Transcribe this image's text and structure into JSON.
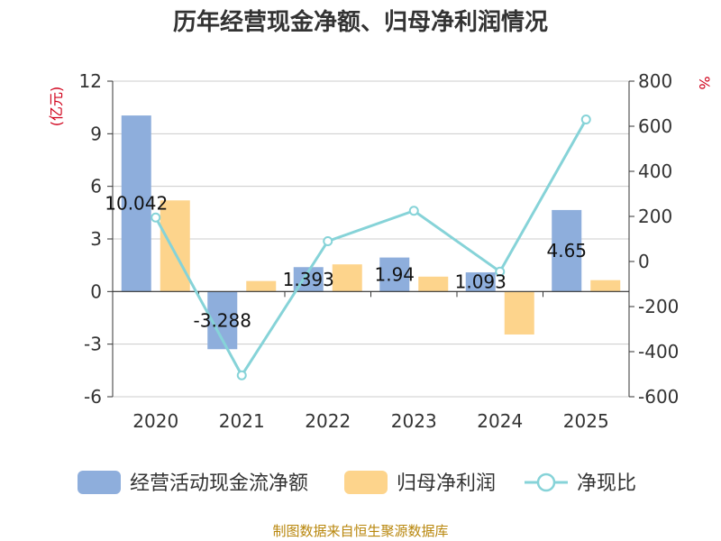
{
  "chart_data": {
    "type": "bar",
    "title": "历年经营现金净额、归母净利润情况",
    "categories": [
      "2020",
      "2021",
      "2022",
      "2023",
      "2024",
      "2025"
    ],
    "series": [
      {
        "name": "经营活动现金流净额",
        "type": "bar",
        "axis": "left",
        "color": "#8eaedc",
        "values": [
          10.042,
          -3.288,
          1.393,
          1.94,
          1.093,
          4.65
        ],
        "labels": [
          "10.042",
          "-3.288",
          "1.393",
          "1.94",
          "1.093",
          "4.65"
        ]
      },
      {
        "name": "归母净利润",
        "type": "bar",
        "axis": "left",
        "color": "#fdd48c",
        "values": [
          5.2,
          0.6,
          1.55,
          0.85,
          -2.45,
          0.65
        ]
      },
      {
        "name": "净现比",
        "type": "line",
        "axis": "right",
        "color": "#86d3d8",
        "values": [
          195,
          -505,
          90,
          225,
          -45,
          630
        ]
      }
    ],
    "left_axis": {
      "unit": "(亿元)",
      "min": -6,
      "max": 12,
      "ticks": [
        "12",
        "9",
        "6",
        "3",
        "0",
        "-3",
        "-6"
      ]
    },
    "right_axis": {
      "unit": "%",
      "min": -600,
      "max": 800,
      "ticks": [
        "800",
        "600",
        "400",
        "200",
        "0",
        "-200",
        "-400",
        "-600"
      ]
    },
    "grid": true,
    "legend_position": "bottom"
  },
  "source": "制图数据来自恒生聚源数据库"
}
